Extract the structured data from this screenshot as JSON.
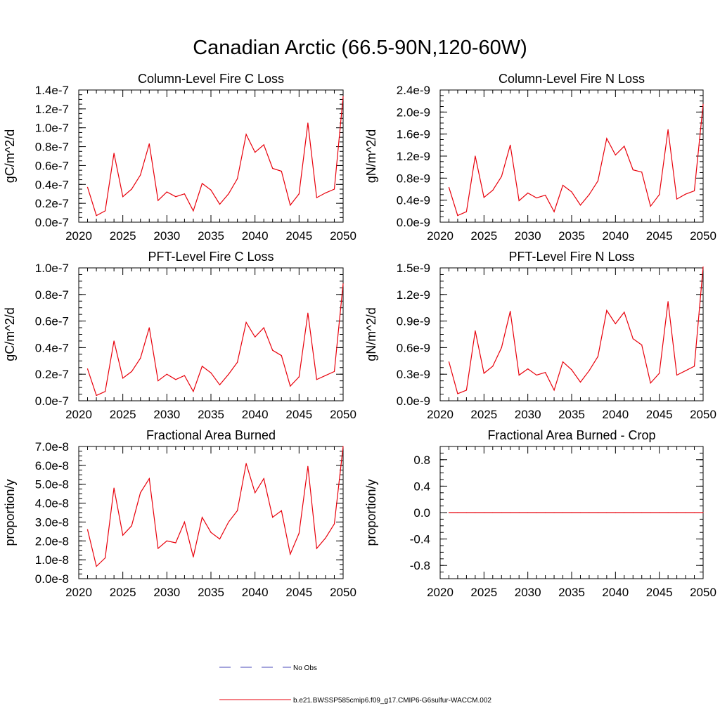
{
  "title": "Canadian Arctic (66.5-90N,120-60W)",
  "colors": {
    "model_line": "#e8000b",
    "obs_line": "#4a4ab8",
    "axis": "#000000"
  },
  "legend": {
    "entries": [
      {
        "label": "No Obs",
        "style": "dashed",
        "color": "#4a4ab8"
      },
      {
        "label": "b.e21.BWSSP585cmip6.f09_g17.CMIP6-G6sulfur-WACCM.002",
        "style": "solid",
        "color": "#e8000b"
      }
    ]
  },
  "chart_data": [
    {
      "type": "line",
      "title": "Column-Level Fire C Loss",
      "xlabel": "",
      "ylabel": "gC/m^2/d",
      "xlim": [
        2020,
        2050
      ],
      "ylim": [
        0,
        1.4e-07
      ],
      "xticks": [
        2020,
        2025,
        2030,
        2035,
        2040,
        2045,
        2050
      ],
      "yticks": [
        "0.0e-7",
        "0.2e-7",
        "0.4e-7",
        "0.6e-7",
        "0.8e-7",
        "1.0e-7",
        "1.2e-7",
        "1.4e-7"
      ],
      "x": [
        2021,
        2022,
        2023,
        2024,
        2025,
        2026,
        2027,
        2028,
        2029,
        2030,
        2031,
        2032,
        2033,
        2034,
        2035,
        2036,
        2037,
        2038,
        2039,
        2040,
        2041,
        2042,
        2043,
        2044,
        2045,
        2046,
        2047,
        2048,
        2049,
        2050
      ],
      "series": [
        {
          "name": "b.e21.BWSSP585cmip6.f09_g17.CMIP6-G6sulfur-WACCM.002",
          "values": [
            3.7e-08,
            7e-09,
            1.2e-08,
            7.3e-08,
            2.7e-08,
            3.5e-08,
            5e-08,
            8.3e-08,
            2.3e-08,
            3.2e-08,
            2.7e-08,
            3e-08,
            1.2e-08,
            4.1e-08,
            3.4e-08,
            1.9e-08,
            3e-08,
            4.6e-08,
            9.3e-08,
            7.4e-08,
            8.2e-08,
            5.7e-08,
            5.4e-08,
            1.8e-08,
            3e-08,
            1.05e-07,
            2.6e-08,
            3.1e-08,
            3.5e-08,
            1.33e-07
          ]
        }
      ]
    },
    {
      "type": "line",
      "title": "Column-Level Fire N Loss",
      "xlabel": "",
      "ylabel": "gN/m^2/d",
      "xlim": [
        2020,
        2050
      ],
      "ylim": [
        0,
        2.4e-09
      ],
      "xticks": [
        2020,
        2025,
        2030,
        2035,
        2040,
        2045,
        2050
      ],
      "yticks": [
        "0.0e-9",
        "0.4e-9",
        "0.8e-9",
        "1.2e-9",
        "1.6e-9",
        "2.0e-9",
        "2.4e-9"
      ],
      "x": [
        2021,
        2022,
        2023,
        2024,
        2025,
        2026,
        2027,
        2028,
        2029,
        2030,
        2031,
        2032,
        2033,
        2034,
        2035,
        2036,
        2037,
        2038,
        2039,
        2040,
        2041,
        2042,
        2043,
        2044,
        2045,
        2046,
        2047,
        2048,
        2049,
        2050
      ],
      "series": [
        {
          "name": "b.e21.BWSSP585cmip6.f09_g17.CMIP6-G6sulfur-WACCM.002",
          "values": [
            6.3e-10,
            1.2e-10,
            1.9e-10,
            1.2e-09,
            4.5e-10,
            5.8e-10,
            8.3e-10,
            1.4e-09,
            3.9e-10,
            5.3e-10,
            4.4e-10,
            4.9e-10,
            1.9e-10,
            6.7e-10,
            5.5e-10,
            3.1e-10,
            5e-10,
            7.5e-10,
            1.52e-09,
            1.22e-09,
            1.38e-09,
            9.5e-10,
            9.1e-10,
            2.9e-10,
            5e-10,
            1.68e-09,
            4.2e-10,
            5.1e-10,
            5.7e-10,
            2.14e-09
          ]
        }
      ]
    },
    {
      "type": "line",
      "title": "PFT-Level Fire C Loss",
      "xlabel": "",
      "ylabel": "gC/m^2/d",
      "xlim": [
        2020,
        2050
      ],
      "ylim": [
        0,
        1e-07
      ],
      "xticks": [
        2020,
        2025,
        2030,
        2035,
        2040,
        2045,
        2050
      ],
      "yticks": [
        "0.0e-7",
        "0.2e-7",
        "0.4e-7",
        "0.6e-7",
        "0.8e-7",
        "1.0e-7"
      ],
      "x": [
        2021,
        2022,
        2023,
        2024,
        2025,
        2026,
        2027,
        2028,
        2029,
        2030,
        2031,
        2032,
        2033,
        2034,
        2035,
        2036,
        2037,
        2038,
        2039,
        2040,
        2041,
        2042,
        2043,
        2044,
        2045,
        2046,
        2047,
        2048,
        2049,
        2050
      ],
      "series": [
        {
          "name": "b.e21.BWSSP585cmip6.f09_g17.CMIP6-G6sulfur-WACCM.002",
          "values": [
            2.4e-08,
            4e-09,
            7e-09,
            4.5e-08,
            1.7e-08,
            2.2e-08,
            3.2e-08,
            5.5e-08,
            1.5e-08,
            2e-08,
            1.6e-08,
            1.9e-08,
            7e-09,
            2.6e-08,
            2.1e-08,
            1.2e-08,
            2e-08,
            2.9e-08,
            5.9e-08,
            4.8e-08,
            5.5e-08,
            3.8e-08,
            3.4e-08,
            1.1e-08,
            1.8e-08,
            6.6e-08,
            1.6e-08,
            1.9e-08,
            2.2e-08,
            8.8e-08
          ]
        }
      ]
    },
    {
      "type": "line",
      "title": "PFT-Level Fire N Loss",
      "xlabel": "",
      "ylabel": "gN/m^2/d",
      "xlim": [
        2020,
        2050
      ],
      "ylim": [
        0,
        1.5e-09
      ],
      "xticks": [
        2020,
        2025,
        2030,
        2035,
        2040,
        2045,
        2050
      ],
      "yticks": [
        "0.0e-9",
        "0.3e-9",
        "0.6e-9",
        "0.9e-9",
        "1.2e-9",
        "1.5e-9"
      ],
      "x": [
        2021,
        2022,
        2023,
        2024,
        2025,
        2026,
        2027,
        2028,
        2029,
        2030,
        2031,
        2032,
        2033,
        2034,
        2035,
        2036,
        2037,
        2038,
        2039,
        2040,
        2041,
        2042,
        2043,
        2044,
        2045,
        2046,
        2047,
        2048,
        2049,
        2050
      ],
      "series": [
        {
          "name": "b.e21.BWSSP585cmip6.f09_g17.CMIP6-G6sulfur-WACCM.002",
          "values": [
            4.4e-10,
            8e-11,
            1.2e-10,
            7.9e-10,
            3.1e-10,
            3.9e-10,
            6e-10,
            1.01e-09,
            2.9e-10,
            3.6e-10,
            2.9e-10,
            3.2e-10,
            1.2e-10,
            4.4e-10,
            3.5e-10,
            2.1e-10,
            3.4e-10,
            5e-10,
            1.02e-09,
            8.7e-10,
            1e-09,
            7e-10,
            6.3e-10,
            2e-10,
            3.1e-10,
            1.12e-09,
            2.9e-10,
            3.4e-10,
            3.9e-10,
            1.51e-09
          ]
        }
      ]
    },
    {
      "type": "line",
      "title": "Fractional Area Burned",
      "xlabel": "",
      "ylabel": "proportion/y",
      "xlim": [
        2020,
        2050
      ],
      "ylim": [
        0,
        7e-08
      ],
      "xticks": [
        2020,
        2025,
        2030,
        2035,
        2040,
        2045,
        2050
      ],
      "yticks": [
        "0.0e-8",
        "1.0e-8",
        "2.0e-8",
        "3.0e-8",
        "4.0e-8",
        "5.0e-8",
        "6.0e-8",
        "7.0e-8"
      ],
      "x": [
        2021,
        2022,
        2023,
        2024,
        2025,
        2026,
        2027,
        2028,
        2029,
        2030,
        2031,
        2032,
        2033,
        2034,
        2035,
        2036,
        2037,
        2038,
        2039,
        2040,
        2041,
        2042,
        2043,
        2044,
        2045,
        2046,
        2047,
        2048,
        2049,
        2050
      ],
      "series": [
        {
          "name": "b.e21.BWSSP585cmip6.f09_g17.CMIP6-G6sulfur-WACCM.002",
          "values": [
            2.6e-08,
            6.5e-09,
            1.1e-08,
            4.8e-08,
            2.3e-08,
            2.8e-08,
            4.55e-08,
            5.3e-08,
            1.6e-08,
            2e-08,
            1.9e-08,
            3e-08,
            1.15e-08,
            3.25e-08,
            2.45e-08,
            2.1e-08,
            3e-08,
            3.6e-08,
            6.1e-08,
            4.55e-08,
            5.3e-08,
            3.25e-08,
            3.6e-08,
            1.3e-08,
            2.4e-08,
            5.95e-08,
            1.6e-08,
            2.15e-08,
            2.9e-08,
            7e-08
          ]
        }
      ]
    },
    {
      "type": "line",
      "title": "Fractional Area Burned - Crop",
      "xlabel": "",
      "ylabel": "proportion/y",
      "xlim": [
        2020,
        2050
      ],
      "ylim": [
        -1.0,
        1.0
      ],
      "xticks": [
        2020,
        2025,
        2030,
        2035,
        2040,
        2045,
        2050
      ],
      "yticks": [
        "-0.8",
        "-0.4",
        "0.0",
        "0.4",
        "0.8"
      ],
      "ytick_values": [
        -0.8,
        -0.4,
        0.0,
        0.4,
        0.8
      ],
      "x": [
        2021,
        2022,
        2023,
        2024,
        2025,
        2026,
        2027,
        2028,
        2029,
        2030,
        2031,
        2032,
        2033,
        2034,
        2035,
        2036,
        2037,
        2038,
        2039,
        2040,
        2041,
        2042,
        2043,
        2044,
        2045,
        2046,
        2047,
        2048,
        2049,
        2050
      ],
      "series": [
        {
          "name": "b.e21.BWSSP585cmip6.f09_g17.CMIP6-G6sulfur-WACCM.002",
          "values": [
            0,
            0,
            0,
            0,
            0,
            0,
            0,
            0,
            0,
            0,
            0,
            0,
            0,
            0,
            0,
            0,
            0,
            0,
            0,
            0,
            0,
            0,
            0,
            0,
            0,
            0,
            0,
            0,
            0,
            0
          ]
        }
      ]
    }
  ]
}
